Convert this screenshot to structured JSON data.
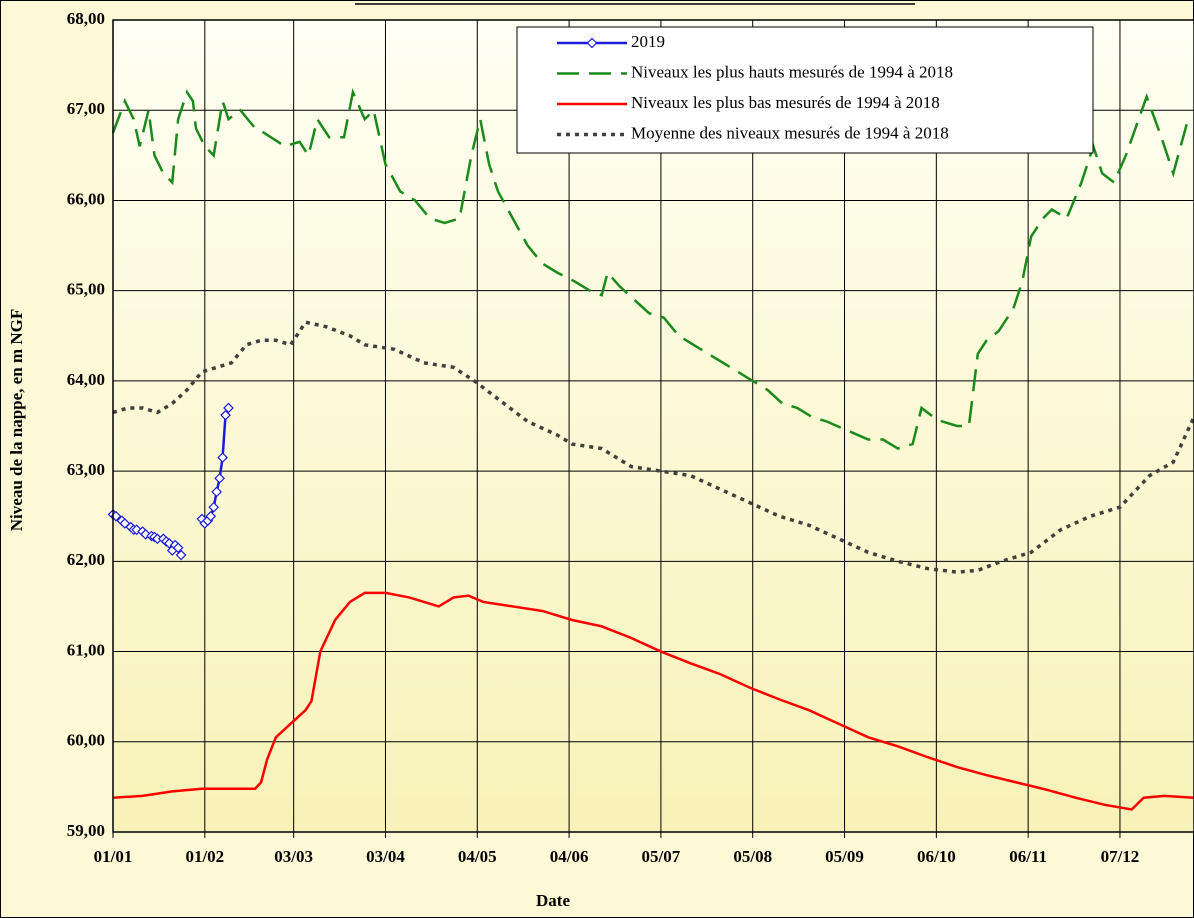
{
  "chart_data": {
    "type": "line",
    "y_label": "Niveau de la nappe, en m NGF",
    "x_label": "Date",
    "xlim": [
      0,
      365
    ],
    "xticks": [
      {
        "value": 0,
        "label": "01/01"
      },
      {
        "value": 31,
        "label": "01/02"
      },
      {
        "value": 61,
        "label": "03/03"
      },
      {
        "value": 92,
        "label": "03/04"
      },
      {
        "value": 123,
        "label": "04/05"
      },
      {
        "value": 154,
        "label": "04/06"
      },
      {
        "value": 185,
        "label": "05/07"
      },
      {
        "value": 216,
        "label": "05/08"
      },
      {
        "value": 247,
        "label": "05/09"
      },
      {
        "value": 278,
        "label": "06/10"
      },
      {
        "value": 309,
        "label": "06/11"
      },
      {
        "value": 340,
        "label": "07/12"
      }
    ],
    "ylim": [
      59,
      68
    ],
    "yticks": [
      {
        "value": 59,
        "label": "59,00"
      },
      {
        "value": 60,
        "label": "60,00"
      },
      {
        "value": 61,
        "label": "61,00"
      },
      {
        "value": 62,
        "label": "62,00"
      },
      {
        "value": 63,
        "label": "63,00"
      },
      {
        "value": 64,
        "label": "64,00"
      },
      {
        "value": 65,
        "label": "65,00"
      },
      {
        "value": 66,
        "label": "66,00"
      },
      {
        "value": 67,
        "label": "67,00"
      },
      {
        "value": 68,
        "label": "68,00"
      }
    ],
    "grid": true,
    "legend": "upper right",
    "series": [
      {
        "name": "2019",
        "color": "#1a1ae0",
        "style": "solid",
        "marker": "diamond",
        "x": [
          0,
          1,
          3,
          4,
          6,
          7,
          8,
          10,
          11,
          13,
          14,
          15,
          17,
          18,
          19,
          20,
          21,
          22,
          23,
          27,
          30,
          31,
          32,
          33,
          34,
          35,
          36,
          37,
          38,
          39
        ],
        "values": [
          62.52,
          62.5,
          62.45,
          62.42,
          62.38,
          62.35,
          62.35,
          62.33,
          62.3,
          62.28,
          62.27,
          62.25,
          62.25,
          62.22,
          62.2,
          62.12,
          62.18,
          62.15,
          62.07,
          null,
          62.47,
          62.42,
          62.45,
          62.5,
          62.6,
          62.77,
          62.92,
          63.15,
          63.62,
          63.7
        ]
      },
      {
        "name": "Niveaux les plus hauts mesurés de 1994 à 2018",
        "color": "#1a8a1a",
        "style": "dashed",
        "x": [
          0,
          4,
          7,
          9,
          12,
          14,
          17,
          20,
          22,
          25,
          27,
          28,
          31,
          34,
          37,
          39,
          43,
          48,
          51,
          58,
          63,
          66,
          69,
          73,
          78,
          81,
          85,
          88,
          92,
          97,
          102,
          107,
          112,
          117,
          121,
          124,
          127,
          130,
          135,
          140,
          145,
          150,
          156,
          161,
          165,
          167,
          171,
          176,
          181,
          186,
          191,
          196,
          201,
          206,
          211,
          216,
          221,
          226,
          231,
          236,
          241,
          248,
          255,
          260,
          265,
          270,
          273,
          277,
          280,
          285,
          289,
          292,
          295,
          299,
          304,
          307,
          310,
          314,
          317,
          322,
          327,
          331,
          334,
          338,
          342,
          349,
          354,
          358,
          363
        ],
        "values": [
          66.75,
          67.1,
          66.9,
          66.6,
          67.0,
          66.5,
          66.3,
          66.2,
          66.9,
          67.2,
          67.1,
          66.8,
          66.6,
          66.5,
          67.1,
          66.9,
          67.0,
          66.8,
          66.75,
          66.6,
          66.65,
          66.5,
          66.9,
          66.7,
          66.7,
          67.2,
          66.9,
          67.0,
          66.4,
          66.1,
          66.0,
          65.8,
          65.75,
          65.8,
          66.5,
          66.9,
          66.4,
          66.1,
          65.8,
          65.5,
          65.3,
          65.2,
          65.1,
          65.0,
          64.95,
          65.2,
          65.05,
          64.9,
          64.75,
          64.7,
          64.5,
          64.4,
          64.3,
          64.2,
          64.1,
          64.0,
          63.9,
          63.75,
          63.7,
          63.6,
          63.55,
          63.45,
          63.35,
          63.35,
          63.25,
          63.3,
          63.7,
          63.6,
          63.55,
          63.5,
          63.5,
          64.3,
          64.45,
          64.55,
          64.8,
          65.1,
          65.6,
          65.8,
          65.9,
          65.8,
          66.2,
          66.6,
          66.3,
          66.2,
          66.5,
          67.15,
          66.7,
          66.3,
          66.9
        ]
      },
      {
        "name": "Niveaux les plus bas mesurés de 1994 à 2018",
        "color": "#ff0000",
        "style": "solid",
        "x": [
          0,
          10,
          20,
          30,
          40,
          48,
          50,
          52,
          55,
          60,
          65,
          67,
          70,
          75,
          80,
          85,
          92,
          100,
          110,
          115,
          120,
          125,
          135,
          145,
          155,
          165,
          175,
          185,
          195,
          205,
          215,
          225,
          235,
          245,
          255,
          265,
          275,
          285,
          295,
          305,
          315,
          325,
          335,
          344,
          348,
          355,
          365
        ],
        "values": [
          59.38,
          59.4,
          59.45,
          59.48,
          59.48,
          59.48,
          59.55,
          59.8,
          60.05,
          60.2,
          60.35,
          60.45,
          61.0,
          61.35,
          61.55,
          61.65,
          61.65,
          61.6,
          61.5,
          61.6,
          61.62,
          61.55,
          61.5,
          61.45,
          61.35,
          61.28,
          61.15,
          61.0,
          60.87,
          60.75,
          60.6,
          60.47,
          60.35,
          60.2,
          60.05,
          59.95,
          59.83,
          59.72,
          59.63,
          59.55,
          59.47,
          59.38,
          59.3,
          59.25,
          59.38,
          59.4,
          59.38
        ]
      },
      {
        "name": "Moyenne des niveaux mesurés de 1994 à 2018",
        "color": "#404040",
        "style": "dotted",
        "x": [
          0,
          5,
          10,
          15,
          20,
          25,
          30,
          35,
          40,
          45,
          50,
          55,
          60,
          62,
          65,
          72,
          80,
          85,
          95,
          105,
          115,
          122,
          130,
          140,
          150,
          155,
          165,
          175,
          185,
          195,
          205,
          215,
          225,
          235,
          245,
          255,
          265,
          275,
          285,
          292,
          300,
          310,
          320,
          330,
          340,
          350,
          358,
          365
        ],
        "values": [
          63.65,
          63.7,
          63.7,
          63.65,
          63.75,
          63.9,
          64.1,
          64.15,
          64.2,
          64.4,
          64.45,
          64.45,
          64.4,
          64.5,
          64.65,
          64.6,
          64.5,
          64.4,
          64.35,
          64.2,
          64.15,
          64.0,
          63.8,
          63.55,
          63.4,
          63.3,
          63.25,
          63.05,
          63.0,
          62.95,
          62.8,
          62.65,
          62.5,
          62.4,
          62.25,
          62.1,
          62.0,
          61.92,
          61.88,
          61.9,
          62.0,
          62.1,
          62.35,
          62.5,
          62.6,
          62.95,
          63.1,
          63.6
        ]
      }
    ]
  }
}
